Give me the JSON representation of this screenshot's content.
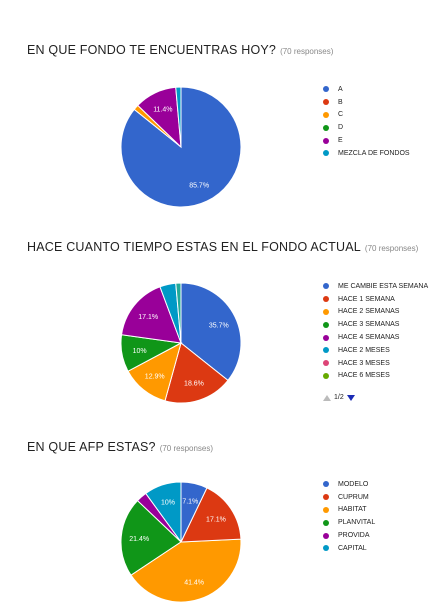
{
  "charts": [
    {
      "question": "EN QUE FONDO TE ENCUENTRAS HOY?",
      "responses": "(70 responses)",
      "chart_data": {
        "type": "pie",
        "title": "EN QUE FONDO TE ENCUENTRAS HOY?",
        "categories": [
          "A",
          "B",
          "C",
          "D",
          "E",
          "MEZCLA DE FONDOS"
        ],
        "values": [
          85.7,
          0,
          1.4,
          0,
          11.4,
          1.4
        ],
        "colors": [
          "#3366cc",
          "#dc3912",
          "#ff9900",
          "#109618",
          "#990099",
          "#0099c6"
        ],
        "data_labels": [
          "85.7%",
          "",
          "",
          "",
          "11.4%",
          ""
        ],
        "legend": "right"
      }
    },
    {
      "question": "HACE CUANTO TIEMPO ESTAS EN EL FONDO ACTUAL",
      "responses": "(70 responses)",
      "chart_data": {
        "type": "pie",
        "title": "HACE CUANTO TIEMPO ESTAS EN EL FONDO ACTUAL",
        "categories": [
          "ME CAMBIE ESTA SEMANA",
          "HACE 1 SEMANA",
          "HACE 2 SEMANAS",
          "HACE 3 SEMANAS",
          "HACE 4 SEMANAS",
          "HACE 2 MESES",
          "HACE 3 MESES",
          "HACE 6 MESES",
          "",
          "",
          ""
        ],
        "values": [
          35.7,
          18.6,
          12.9,
          10,
          17.1,
          4.3,
          0,
          0,
          0,
          0,
          1.4
        ],
        "colors": [
          "#3366cc",
          "#dc3912",
          "#ff9900",
          "#109618",
          "#990099",
          "#0099c6",
          "#dd4477",
          "#66aa00",
          "#b82e2e",
          "#316395",
          "#22aa99"
        ],
        "data_labels": [
          "35.7%",
          "18.6%",
          "12.9%",
          "10%",
          "17.1%",
          "",
          "",
          "",
          "",
          "",
          ""
        ],
        "legend": "right",
        "legend_page": "1/2"
      }
    },
    {
      "question": "EN QUE AFP ESTAS?",
      "responses": "(70 responses)",
      "chart_data": {
        "type": "pie",
        "title": "EN QUE AFP ESTAS?",
        "categories": [
          "MODELO",
          "CUPRUM",
          "HABITAT",
          "PLANVITAL",
          "PROVIDA",
          "CAPITAL"
        ],
        "values": [
          7.1,
          17.1,
          41.4,
          21.4,
          2.9,
          10
        ],
        "colors": [
          "#3366cc",
          "#dc3912",
          "#ff9900",
          "#109618",
          "#990099",
          "#0099c6"
        ],
        "data_labels": [
          "7.1%",
          "17.1%",
          "41.4%",
          "21.4%",
          "",
          "10%"
        ],
        "legend": "right"
      }
    }
  ]
}
